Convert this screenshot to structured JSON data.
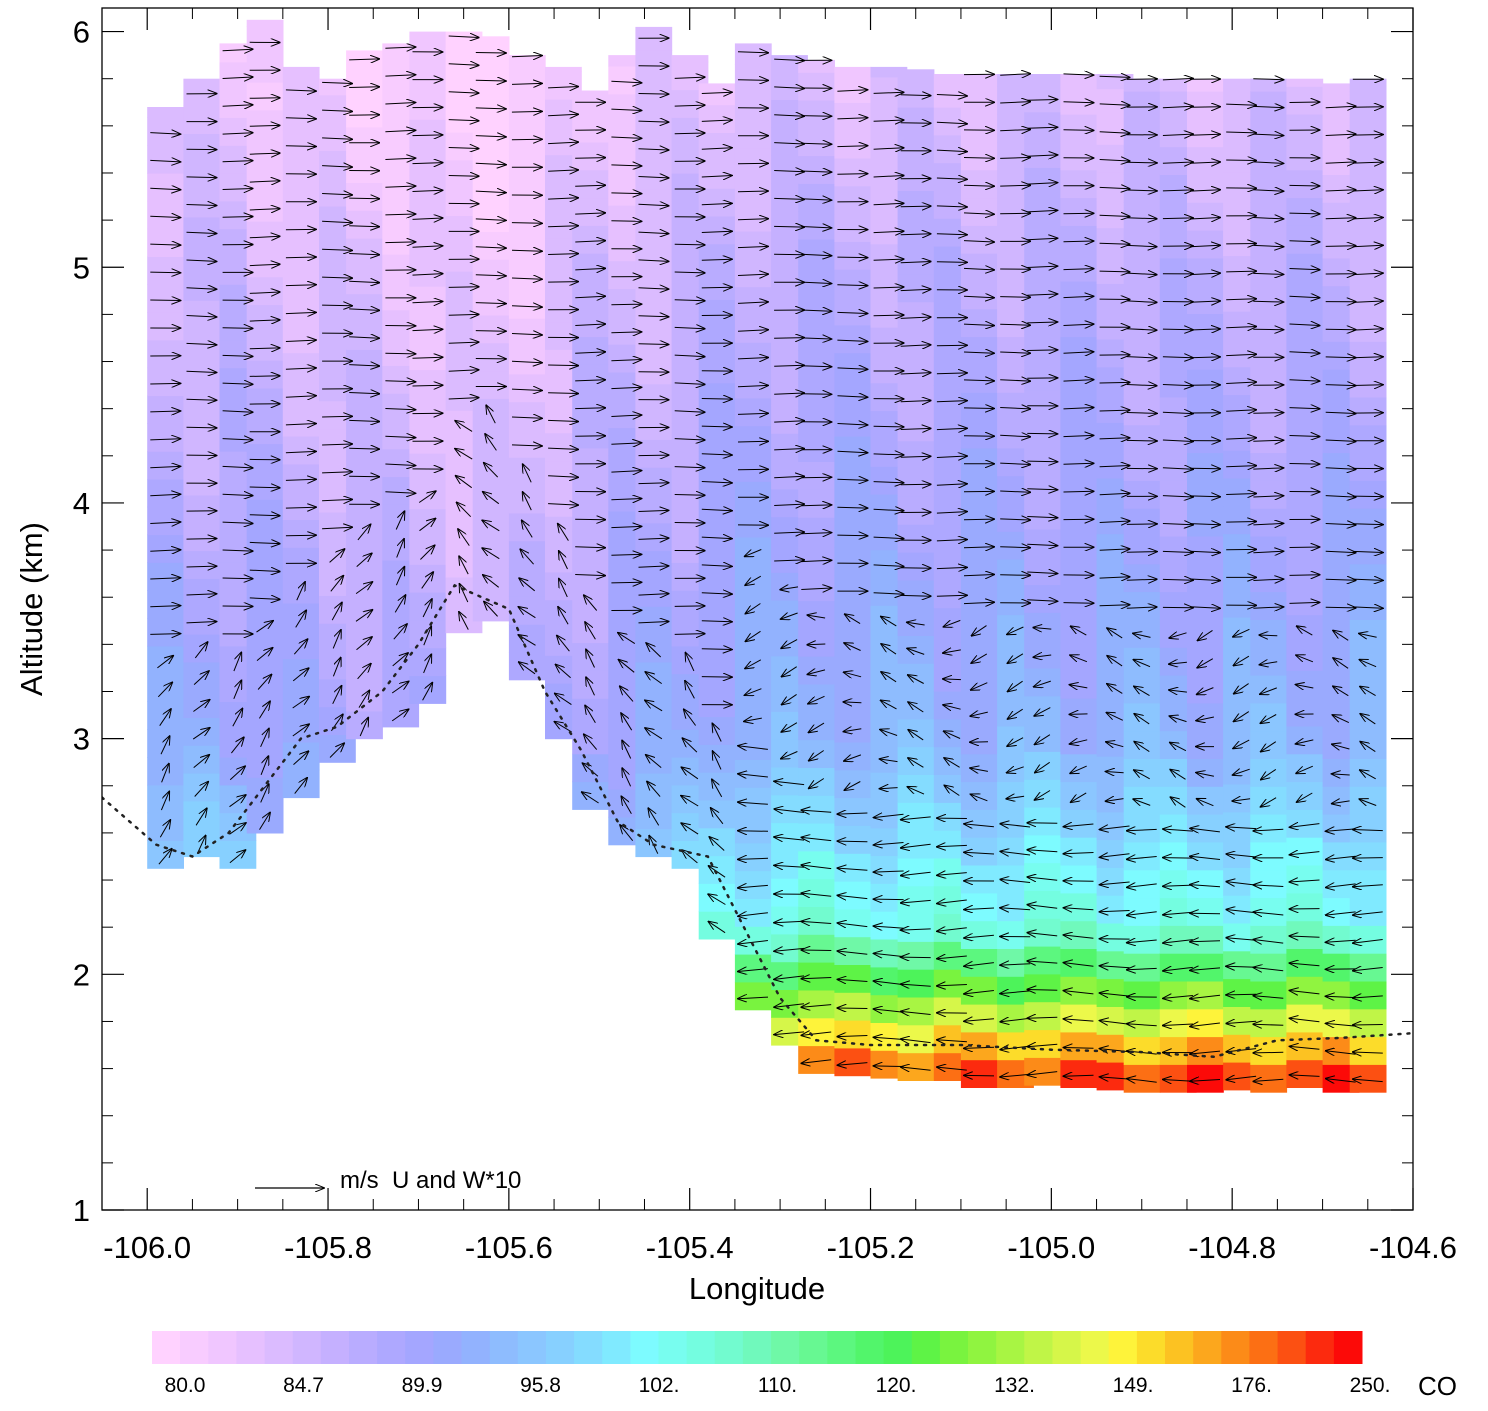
{
  "chart_data": {
    "type": "heatmap",
    "title": "",
    "xlabel": "Longitude",
    "ylabel": "Altitude (km)",
    "xlim": [
      -106.05,
      -104.6
    ],
    "ylim": [
      1,
      6.1
    ],
    "x_ticks": [
      -106.0,
      -105.8,
      -105.6,
      -105.4,
      -105.2,
      -105.0,
      -104.8,
      -104.6
    ],
    "x_tick_labels": [
      "-106.0",
      "-105.8",
      "-105.6",
      "-105.4",
      "-105.2",
      "-105.0",
      "-104.8",
      "-104.6"
    ],
    "y_ticks": [
      1,
      2,
      3,
      4,
      5,
      6
    ],
    "y_tick_labels": [
      "1",
      "2",
      "3",
      "4",
      "5",
      "6"
    ],
    "colorbar": {
      "label": "CO",
      "tick_labels": [
        "80.0",
        "84.7",
        "89.9",
        "95.8",
        "102.",
        "110.",
        "120.",
        "132.",
        "149.",
        "176.",
        "250."
      ],
      "colors": [
        "#ffd2ff",
        "#f8ccff",
        "#f0c6ff",
        "#e6c0ff",
        "#dbbbff",
        "#d0b6ff",
        "#c5b0ff",
        "#b9acff",
        "#aea8ff",
        "#a4a6ff",
        "#9aaafe",
        "#92b2fe",
        "#8ebcfe",
        "#8bc6ff",
        "#87d0ff",
        "#84dcff",
        "#80eaff",
        "#7dfbff",
        "#78fdef",
        "#74fde0",
        "#72fbcf",
        "#70f9bc",
        "#6ff8a7",
        "#67f892",
        "#5cf77f",
        "#52f56b",
        "#4df35a",
        "#5ef346",
        "#79f33f",
        "#90f440",
        "#a8f543",
        "#c0f547",
        "#d6f649",
        "#ecf84a",
        "#fef33a",
        "#fcdc2a",
        "#fcc222",
        "#fca71d",
        "#fc8b18",
        "#fc6f14",
        "#fc5012",
        "#fc2a0e",
        "#fc0a08"
      ]
    },
    "vector_legend": "m/s  U and W*10",
    "x_columns": [
      -105.98,
      -105.94,
      -105.9,
      -105.87,
      -105.83,
      -105.79,
      -105.76,
      -105.72,
      -105.69,
      -105.65,
      -105.62,
      -105.58,
      -105.54,
      -105.51,
      -105.47,
      -105.44,
      -105.4,
      -105.37,
      -105.33,
      -105.29,
      -105.26,
      -105.22,
      -105.18,
      -105.15,
      -105.11,
      -105.08,
      -105.04,
      -105.01,
      -104.97,
      -104.93,
      -104.9,
      -104.86,
      -104.83,
      -104.79,
      -104.76,
      -104.72,
      -104.68,
      -104.65
    ],
    "column_bottom_km": [
      2.45,
      2.5,
      2.45,
      2.6,
      2.75,
      2.9,
      3.0,
      3.05,
      3.15,
      3.45,
      3.5,
      3.25,
      3.0,
      2.7,
      2.55,
      2.5,
      2.45,
      2.15,
      1.85,
      1.7,
      1.58,
      1.57,
      1.56,
      1.55,
      1.55,
      1.52,
      1.52,
      1.53,
      1.52,
      1.51,
      1.5,
      1.5,
      1.5,
      1.51,
      1.5,
      1.52,
      1.5,
      1.5
    ],
    "column_top_km": [
      5.68,
      5.8,
      5.95,
      6.05,
      5.85,
      5.8,
      5.92,
      5.95,
      6.0,
      6.0,
      5.98,
      5.9,
      5.85,
      5.75,
      5.9,
      6.02,
      5.9,
      5.78,
      5.95,
      5.9,
      5.88,
      5.85,
      5.85,
      5.84,
      5.82,
      5.82,
      5.82,
      5.82,
      5.82,
      5.82,
      5.8,
      5.8,
      5.8,
      5.8,
      5.8,
      5.8,
      5.78,
      5.8
    ],
    "co_profile_key_levels_km": [
      1.5,
      2.2,
      3.0,
      4.0,
      5.0,
      5.8
    ],
    "co_profile_lowlands": [
      250.0,
      132.0,
      110.0,
      102.0,
      95.8,
      89.9
    ],
    "co_profile_mountains": [
      110.0,
      102.0,
      95.8,
      89.9,
      84.7,
      80.0
    ],
    "terrain_line": {
      "lon": [
        -106.05,
        -105.99,
        -105.95,
        -105.91,
        -105.87,
        -105.83,
        -105.79,
        -105.74,
        -105.7,
        -105.66,
        -105.63,
        -105.6,
        -105.56,
        -105.52,
        -105.48,
        -105.44,
        -105.38,
        -105.34,
        -105.3,
        -105.26,
        -105.2,
        -105.1,
        -105.0,
        -104.9,
        -104.82,
        -104.75,
        -104.68,
        -104.6
      ],
      "alt_km": [
        2.75,
        2.55,
        2.5,
        2.6,
        2.8,
        3.0,
        3.05,
        3.2,
        3.4,
        3.65,
        3.6,
        3.55,
        3.2,
        2.95,
        2.65,
        2.55,
        2.5,
        2.2,
        1.9,
        1.72,
        1.7,
        1.7,
        1.68,
        1.67,
        1.65,
        1.72,
        1.73,
        1.75
      ]
    },
    "wind_field": "vectors ~ eastward aloft, westward/easterly near surface over plains, upslope flow on terrain"
  }
}
